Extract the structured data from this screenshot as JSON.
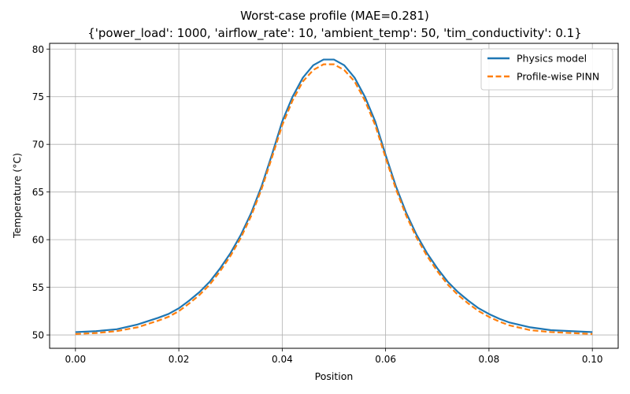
{
  "chart_data": {
    "type": "line",
    "title": "Worst-case profile (MAE=0.281)",
    "subtitle": "{'power_load': 1000, 'airflow_rate': 10, 'ambient_temp': 50, 'tim_conductivity': 0.1}",
    "xlabel": "Position",
    "ylabel": "Temperature (°C)",
    "xlim": [
      -0.005,
      0.105
    ],
    "ylim": [
      48.6,
      80.6
    ],
    "xticks": [
      0.0,
      0.02,
      0.04,
      0.06,
      0.08,
      0.1
    ],
    "xtick_labels": [
      "0.00",
      "0.02",
      "0.04",
      "0.06",
      "0.08",
      "0.10"
    ],
    "yticks": [
      50,
      55,
      60,
      65,
      70,
      75,
      80
    ],
    "ytick_labels": [
      "50",
      "55",
      "60",
      "65",
      "70",
      "75",
      "80"
    ],
    "grid": true,
    "legend_position": "top-right",
    "series": [
      {
        "name": "Physics model",
        "color": "#1f77b4",
        "style": "solid",
        "x": [
          0.0,
          0.004,
          0.008,
          0.012,
          0.016,
          0.018,
          0.02,
          0.022,
          0.024,
          0.026,
          0.028,
          0.03,
          0.032,
          0.034,
          0.036,
          0.038,
          0.04,
          0.042,
          0.044,
          0.046,
          0.048,
          0.05,
          0.052,
          0.054,
          0.056,
          0.058,
          0.06,
          0.062,
          0.064,
          0.066,
          0.068,
          0.07,
          0.072,
          0.074,
          0.076,
          0.078,
          0.08,
          0.082,
          0.084,
          0.088,
          0.092,
          0.096,
          0.1
        ],
        "y": [
          50.3,
          50.4,
          50.6,
          51.1,
          51.8,
          52.2,
          52.8,
          53.6,
          54.5,
          55.6,
          57.0,
          58.6,
          60.5,
          62.8,
          65.6,
          68.9,
          72.4,
          75.0,
          77.0,
          78.3,
          78.9,
          78.9,
          78.3,
          77.0,
          75.0,
          72.4,
          68.9,
          65.6,
          62.8,
          60.5,
          58.6,
          57.0,
          55.6,
          54.5,
          53.6,
          52.8,
          52.2,
          51.7,
          51.3,
          50.8,
          50.5,
          50.4,
          50.3
        ]
      },
      {
        "name": "Profile-wise PINN",
        "color": "#ff7f0e",
        "style": "dashed",
        "x": [
          0.0,
          0.004,
          0.008,
          0.012,
          0.016,
          0.018,
          0.02,
          0.022,
          0.024,
          0.026,
          0.028,
          0.03,
          0.032,
          0.034,
          0.036,
          0.038,
          0.04,
          0.042,
          0.044,
          0.046,
          0.048,
          0.05,
          0.052,
          0.054,
          0.056,
          0.058,
          0.06,
          0.062,
          0.064,
          0.066,
          0.068,
          0.07,
          0.072,
          0.074,
          0.076,
          0.078,
          0.08,
          0.082,
          0.084,
          0.088,
          0.092,
          0.096,
          0.1
        ],
        "y": [
          50.1,
          50.2,
          50.4,
          50.8,
          51.5,
          51.9,
          52.5,
          53.3,
          54.2,
          55.3,
          56.7,
          58.3,
          60.2,
          62.5,
          65.3,
          68.6,
          72.0,
          74.6,
          76.6,
          77.8,
          78.4,
          78.4,
          77.8,
          76.6,
          74.6,
          72.0,
          68.6,
          65.3,
          62.5,
          60.2,
          58.3,
          56.7,
          55.3,
          54.2,
          53.3,
          52.5,
          51.9,
          51.4,
          51.0,
          50.5,
          50.3,
          50.2,
          50.1
        ]
      }
    ]
  }
}
